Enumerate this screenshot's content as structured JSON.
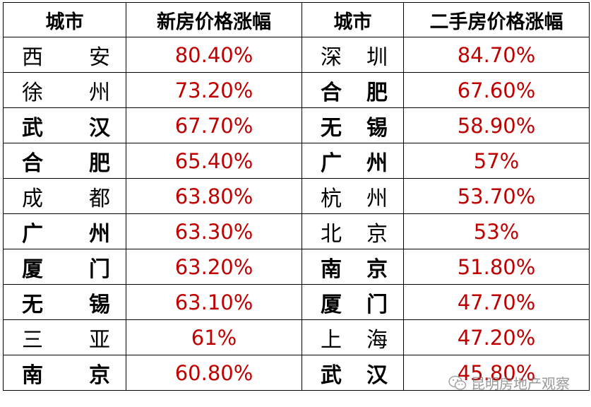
{
  "headers": [
    "城市",
    "新房价格涨幅",
    "城市",
    "二手房价格涨幅"
  ],
  "rows": [
    {
      "city1": [
        "西",
        "安"
      ],
      "bold1": false,
      "new_pct": "80.40%",
      "city2": [
        "深",
        "圳"
      ],
      "bold2": false,
      "used_pct": "84.70%"
    },
    {
      "city1": [
        "徐",
        "州"
      ],
      "bold1": false,
      "new_pct": "73.20%",
      "city2": [
        "合",
        "肥"
      ],
      "bold2": true,
      "used_pct": "67.60%"
    },
    {
      "city1": [
        "武",
        "汉"
      ],
      "bold1": true,
      "new_pct": "67.70%",
      "city2": [
        "无",
        "锡"
      ],
      "bold2": true,
      "used_pct": "58.90%"
    },
    {
      "city1": [
        "合",
        "肥"
      ],
      "bold1": true,
      "new_pct": "65.40%",
      "city2": [
        "广",
        "州"
      ],
      "bold2": true,
      "used_pct": "57%"
    },
    {
      "city1": [
        "成",
        "都"
      ],
      "bold1": false,
      "new_pct": "63.80%",
      "city2": [
        "杭",
        "州"
      ],
      "bold2": false,
      "used_pct": "53.70%"
    },
    {
      "city1": [
        "广",
        "州"
      ],
      "bold1": true,
      "new_pct": "63.30%",
      "city2": [
        "北",
        "京"
      ],
      "bold2": false,
      "used_pct": "53%"
    },
    {
      "city1": [
        "厦",
        "门"
      ],
      "bold1": true,
      "new_pct": "63.20%",
      "city2": [
        "南",
        "京"
      ],
      "bold2": true,
      "used_pct": "51.80%"
    },
    {
      "city1": [
        "无",
        "锡"
      ],
      "bold1": true,
      "new_pct": "63.10%",
      "city2": [
        "厦",
        "门"
      ],
      "bold2": true,
      "used_pct": "47.70%"
    },
    {
      "city1": [
        "三",
        "亚"
      ],
      "bold1": false,
      "new_pct": "61%",
      "city2": [
        "上",
        "海"
      ],
      "bold2": false,
      "used_pct": "47.20%"
    },
    {
      "city1": [
        "南",
        "京"
      ],
      "bold1": true,
      "new_pct": "60.80%",
      "city2": [
        "武",
        "汉"
      ],
      "bold2": true,
      "used_pct": "45.80%"
    }
  ],
  "watermark": {
    "text": "昆明房地产观察",
    "icon": "wechat-icon"
  },
  "colors": {
    "value_text": "#c00000",
    "border": "#000000"
  }
}
